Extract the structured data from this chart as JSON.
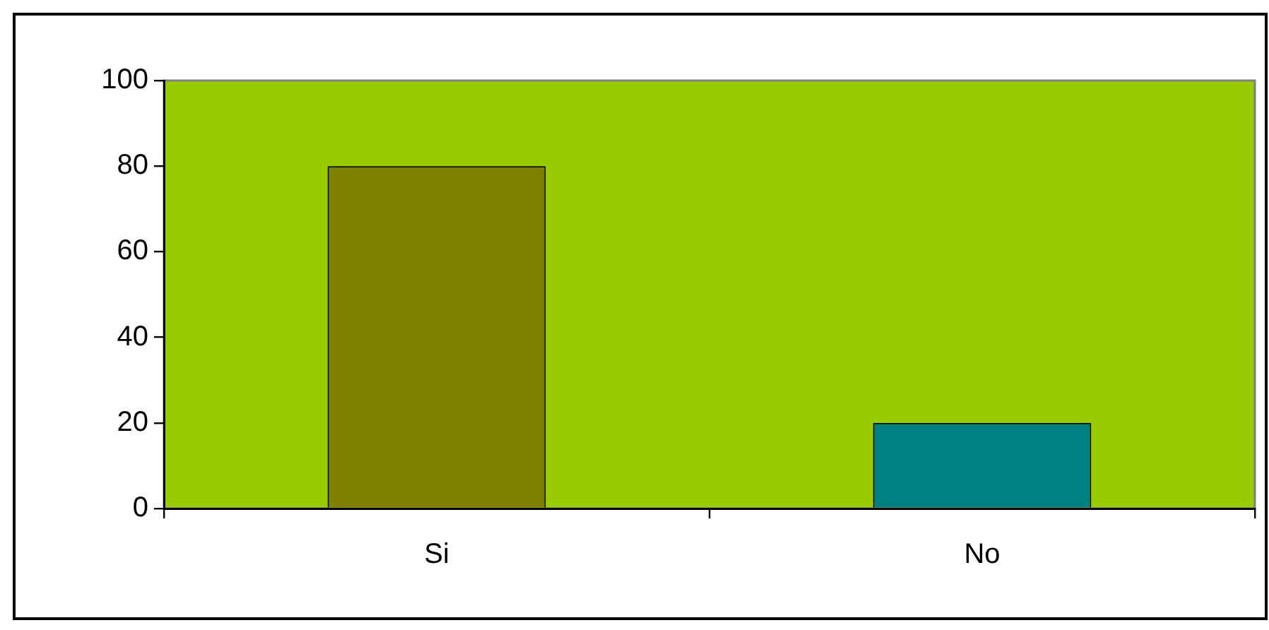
{
  "chart_data": {
    "type": "bar",
    "categories": [
      "Si",
      "No"
    ],
    "values": [
      80,
      20
    ],
    "colors": [
      "#808000",
      "#008080"
    ],
    "ylim": [
      0,
      100
    ],
    "yticks": [
      0,
      20,
      40,
      60,
      80,
      100
    ]
  }
}
